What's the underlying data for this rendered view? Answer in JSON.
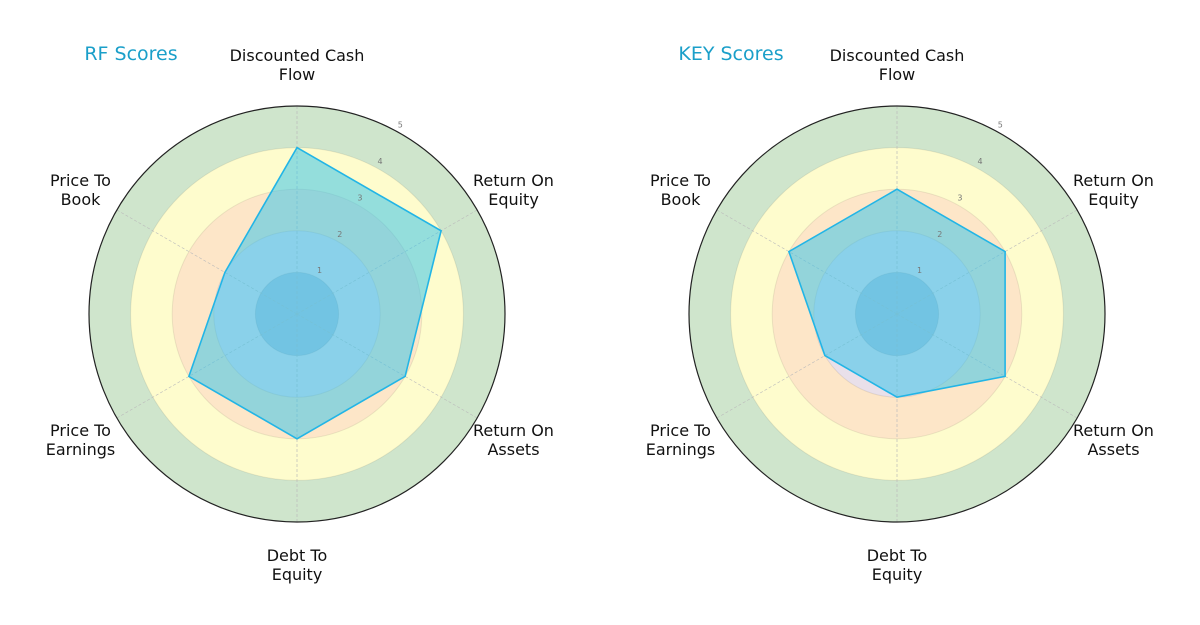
{
  "chart_data": [
    {
      "type": "radar",
      "title": "RF Scores",
      "axes": [
        "Discounted Cash Flow",
        "Return On Equity",
        "Return On Assets",
        "Debt To Equity",
        "Price To Earnings",
        "Price To Book"
      ],
      "axis_label_lines": [
        [
          "Discounted Cash",
          "Flow"
        ],
        [
          "Return On",
          "Equity"
        ],
        [
          "Return On",
          "Assets"
        ],
        [
          "Debt To",
          "Equity"
        ],
        [
          "Price To",
          "Earnings"
        ],
        [
          "Price To",
          "Book"
        ]
      ],
      "values": [
        4,
        4,
        3,
        3,
        3,
        2
      ],
      "rlim": [
        0,
        5
      ],
      "r_ticks": [
        "1",
        "2",
        "3",
        "4",
        "5"
      ]
    },
    {
      "type": "radar",
      "title": "KEY Scores",
      "axes": [
        "Discounted Cash Flow",
        "Return On Equity",
        "Return On Assets",
        "Debt To Equity",
        "Price To Earnings",
        "Price To Book"
      ],
      "axis_label_lines": [
        [
          "Discounted Cash",
          "Flow"
        ],
        [
          "Return On",
          "Equity"
        ],
        [
          "Return On",
          "Assets"
        ],
        [
          "Debt To",
          "Equity"
        ],
        [
          "Price To",
          "Earnings"
        ],
        [
          "Price To",
          "Book"
        ]
      ],
      "values": [
        3,
        3,
        3,
        2,
        2,
        3
      ],
      "rlim": [
        0,
        5
      ],
      "r_ticks": [
        "1",
        "2",
        "3",
        "4",
        "5"
      ]
    }
  ],
  "colors": {
    "title": "#1a9fc9",
    "series_line": "#22b5e6",
    "series_fill": "#3cc4ea",
    "bands": [
      "#b3c3dc",
      "#e9e0ea",
      "#fde6c8",
      "#fefccd",
      "#cfe5cc"
    ]
  }
}
